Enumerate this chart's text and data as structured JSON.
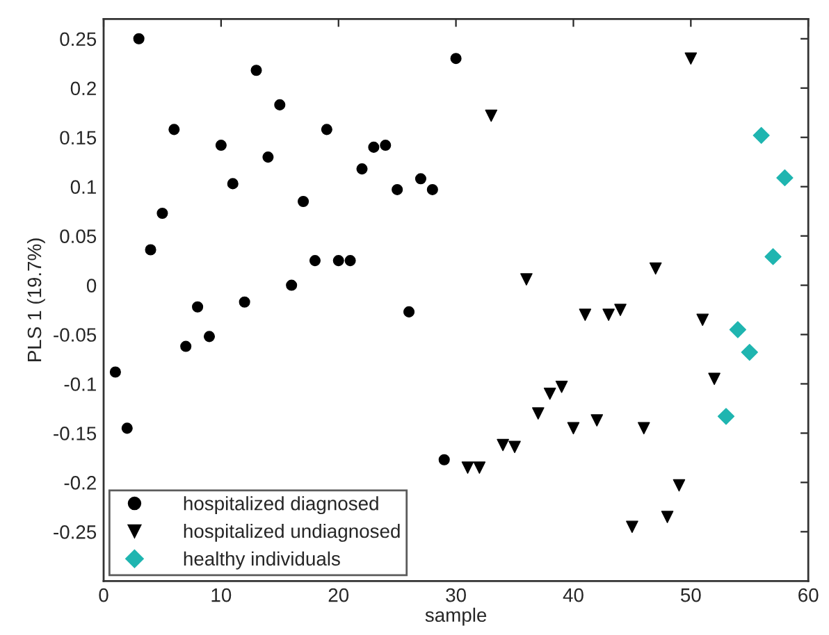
{
  "chart_data": {
    "type": "scatter",
    "xlabel": "sample",
    "ylabel": "PLS 1 (19.7%)",
    "xlim": [
      0,
      60
    ],
    "xticks": [
      0,
      10,
      20,
      30,
      40,
      50,
      60
    ],
    "ylim": [
      -0.3,
      0.27
    ],
    "yticks": [
      -0.25,
      -0.2,
      -0.15,
      -0.1,
      -0.05,
      0,
      0.05,
      0.1,
      0.15,
      0.2,
      0.25
    ],
    "grid": false,
    "legend": "bottom left",
    "series": [
      {
        "name": "hospitalized diagnosed",
        "color": "#000000",
        "marker": "circle",
        "x": [
          1,
          2,
          3,
          4,
          5,
          6,
          7,
          8,
          9,
          10,
          11,
          12,
          13,
          14,
          15,
          16,
          17,
          18,
          19,
          20,
          21,
          22,
          23,
          24,
          25,
          26,
          27,
          28,
          29,
          30
        ],
        "values": [
          -0.088,
          -0.145,
          0.25,
          0.036,
          0.073,
          0.158,
          -0.062,
          -0.022,
          -0.052,
          0.142,
          0.103,
          -0.017,
          0.218,
          0.13,
          0.183,
          0.0,
          0.085,
          0.025,
          0.158,
          0.025,
          0.025,
          0.118,
          0.14,
          0.142,
          0.097,
          -0.027,
          0.108,
          0.097,
          -0.177,
          0.23
        ]
      },
      {
        "name": "hospitalized undiagnosed",
        "color": "#000000",
        "marker": "triangle",
        "x": [
          31,
          32,
          33,
          34,
          35,
          36,
          37,
          38,
          39,
          40,
          41,
          42,
          43,
          44,
          45,
          46,
          47,
          48,
          49,
          50,
          51,
          52
        ],
        "values": [
          -0.185,
          -0.185,
          0.172,
          -0.162,
          -0.164,
          0.006,
          -0.13,
          -0.11,
          -0.103,
          -0.145,
          -0.03,
          -0.137,
          -0.03,
          -0.025,
          -0.245,
          -0.145,
          0.017,
          -0.235,
          -0.203,
          0.23,
          -0.035,
          -0.095
        ]
      },
      {
        "name": "healthy individuals",
        "color": "#1fb5b0",
        "marker": "diamond",
        "x": [
          53,
          54,
          55,
          56,
          57,
          58
        ],
        "values": [
          -0.133,
          -0.045,
          -0.068,
          0.152,
          0.029,
          0.109
        ]
      }
    ]
  }
}
